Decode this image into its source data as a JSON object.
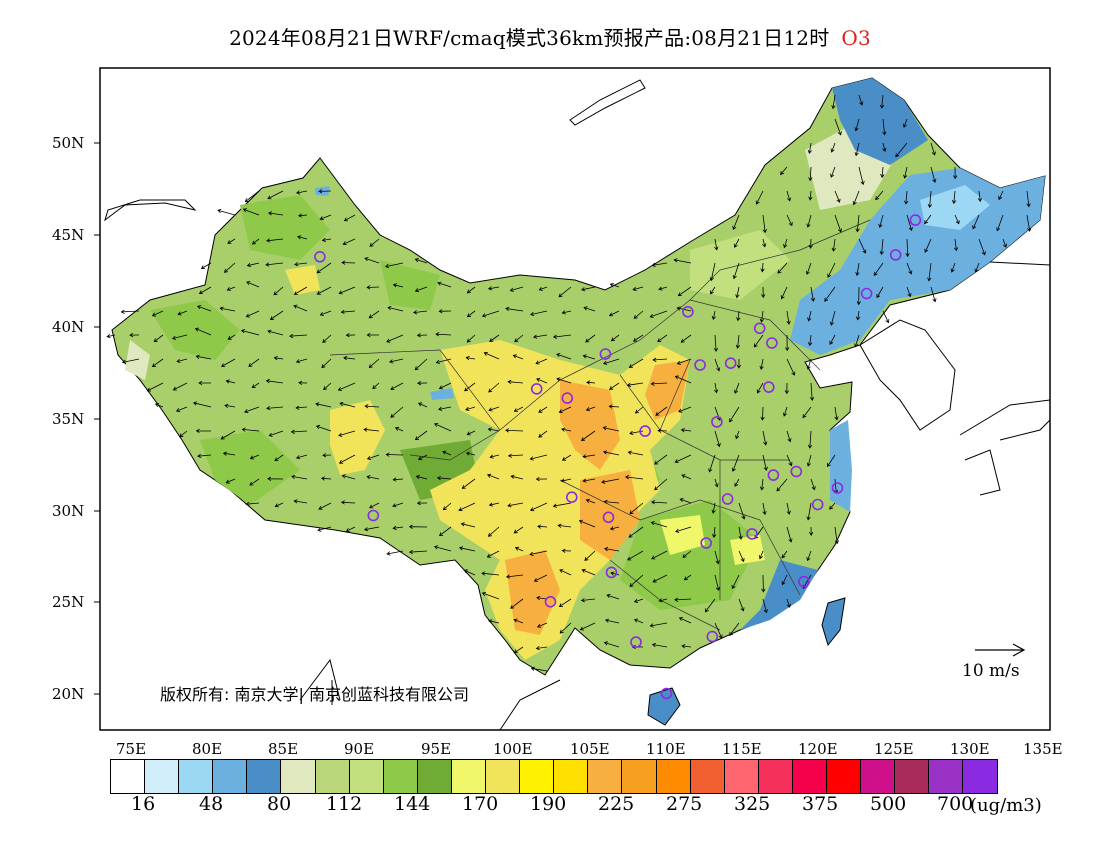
{
  "title": {
    "main": "2024年08月21日WRF/cmaq模式36km预报产品:08月21日12时",
    "variable": "O3"
  },
  "map": {
    "lat_labels": [
      "50N",
      "45N",
      "40N",
      "35N",
      "30N",
      "25N",
      "20N"
    ],
    "lon_labels": [
      "75E",
      "80E",
      "85E",
      "90E",
      "95E",
      "100E",
      "105E",
      "110E",
      "115E",
      "120E",
      "125E",
      "130E",
      "135E"
    ],
    "copyright": "版权所有: 南京大学| 南京创蓝科技有限公司",
    "wind_reference": "10 m/s"
  },
  "colorbar": {
    "colors": [
      "#ffffff",
      "#d2eefb",
      "#9cd8f4",
      "#6cb0e0",
      "#4a8ec8",
      "#dfe8bf",
      "#b9d77a",
      "#c3e07f",
      "#8ec94a",
      "#6fab35",
      "#f1f76a",
      "#f2e45a",
      "#fff200",
      "#ffe000",
      "#f7b040",
      "#f7a020",
      "#ff8c00",
      "#f06030",
      "#ff6670",
      "#f5305a",
      "#f5004a",
      "#ff0000",
      "#d0108a",
      "#a82a5a",
      "#9a32c8",
      "#8a2be2"
    ],
    "labels": [
      "16",
      "48",
      "80",
      "112",
      "144",
      "170",
      "190",
      "225",
      "275",
      "325",
      "375",
      "500",
      "700"
    ],
    "unit": "(ug/m3)"
  },
  "stations": [
    {
      "lon": 87.6,
      "lat": 43.8
    },
    {
      "lon": 91.1,
      "lat": 29.7
    },
    {
      "lon": 101.8,
      "lat": 36.6
    },
    {
      "lon": 103.8,
      "lat": 36.1
    },
    {
      "lon": 106.3,
      "lat": 38.5
    },
    {
      "lon": 104.1,
      "lat": 30.7
    },
    {
      "lon": 106.5,
      "lat": 29.6
    },
    {
      "lon": 102.7,
      "lat": 25.0
    },
    {
      "lon": 106.7,
      "lat": 26.6
    },
    {
      "lon": 108.9,
      "lat": 34.3
    },
    {
      "lon": 111.7,
      "lat": 40.8
    },
    {
      "lon": 112.5,
      "lat": 37.9
    },
    {
      "lon": 114.5,
      "lat": 38.0
    },
    {
      "lon": 113.6,
      "lat": 34.8
    },
    {
      "lon": 116.4,
      "lat": 39.9
    },
    {
      "lon": 117.2,
      "lat": 39.1
    },
    {
      "lon": 117.0,
      "lat": 36.7
    },
    {
      "lon": 114.3,
      "lat": 30.6
    },
    {
      "lon": 112.9,
      "lat": 28.2
    },
    {
      "lon": 115.9,
      "lat": 28.7
    },
    {
      "lon": 117.3,
      "lat": 31.9
    },
    {
      "lon": 118.8,
      "lat": 32.1
    },
    {
      "lon": 120.2,
      "lat": 30.3
    },
    {
      "lon": 121.5,
      "lat": 31.2
    },
    {
      "lon": 119.3,
      "lat": 26.1
    },
    {
      "lon": 113.3,
      "lat": 23.1
    },
    {
      "lon": 108.3,
      "lat": 22.8
    },
    {
      "lon": 110.3,
      "lat": 20.0
    },
    {
      "lon": 123.4,
      "lat": 41.8
    },
    {
      "lon": 125.3,
      "lat": 43.9
    },
    {
      "lon": 126.6,
      "lat": 45.8
    }
  ]
}
